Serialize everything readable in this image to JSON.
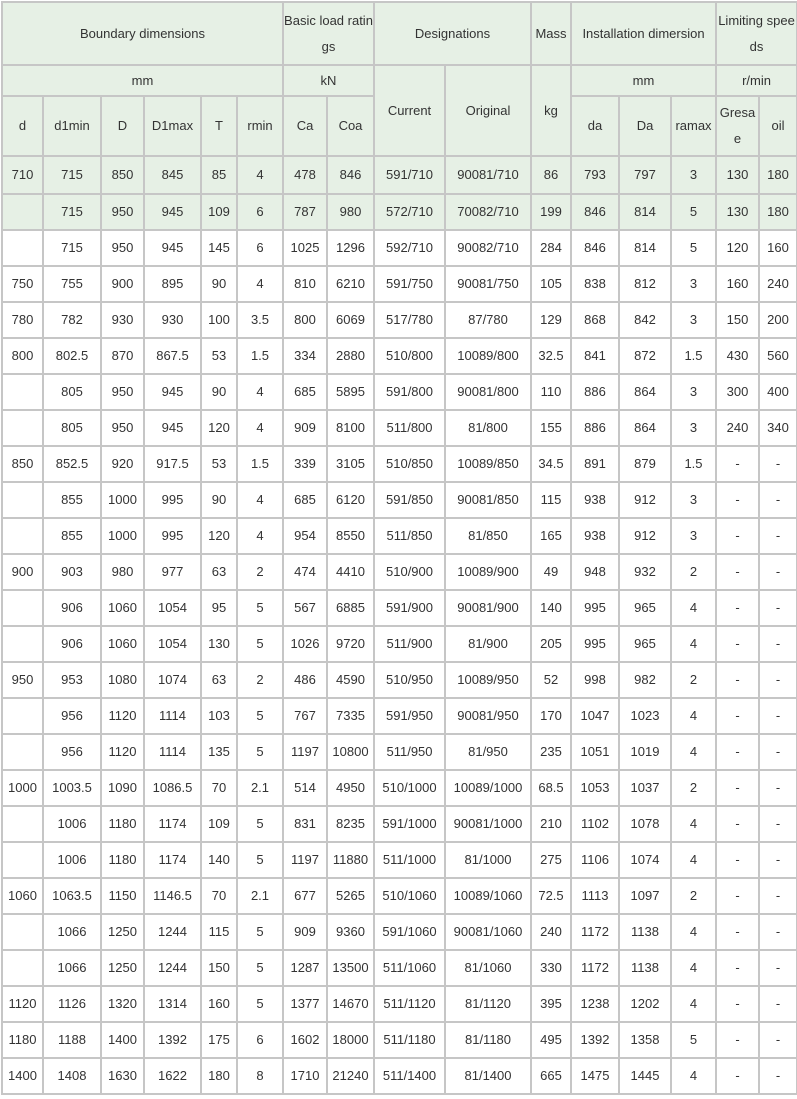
{
  "header": {
    "boundary": "Boundary dimensions",
    "load": "Basic load ratings",
    "designations": "Designations",
    "mass": "Mass",
    "installation": "Installation dimersion",
    "speeds": "Limiting speeds",
    "unit_mm": "mm",
    "unit_kn": "kN",
    "unit_kg": "kg",
    "unit_mm2": "mm",
    "unit_rpm": "r/min",
    "current": "Current",
    "original": "Original",
    "cols": [
      "d",
      "d1min",
      "D",
      "D1max",
      "T",
      "rmin",
      "Ca",
      "Coa"
    ],
    "cols2": [
      "da",
      "Da",
      "ramax",
      "Gresae",
      "oil"
    ]
  },
  "rows": [
    [
      "710",
      "715",
      "850",
      "845",
      "85",
      "4",
      "478",
      "846",
      "591/710",
      "90081/710",
      "86",
      "793",
      "797",
      "3",
      "130",
      "180"
    ],
    [
      "",
      "715",
      "950",
      "945",
      "109",
      "6",
      "787",
      "980",
      "572/710",
      "70082/710",
      "199",
      "846",
      "814",
      "5",
      "130",
      "180"
    ],
    [
      "",
      "715",
      "950",
      "945",
      "145",
      "6",
      "1025",
      "1296",
      "592/710",
      "90082/710",
      "284",
      "846",
      "814",
      "5",
      "120",
      "160"
    ],
    [
      "750",
      "755",
      "900",
      "895",
      "90",
      "4",
      "810",
      "6210",
      "591/750",
      "90081/750",
      "105",
      "838",
      "812",
      "3",
      "160",
      "240"
    ],
    [
      "780",
      "782",
      "930",
      "930",
      "100",
      "3.5",
      "800",
      "6069",
      "517/780",
      "87/780",
      "129",
      "868",
      "842",
      "3",
      "150",
      "200"
    ],
    [
      "800",
      "802.5",
      "870",
      "867.5",
      "53",
      "1.5",
      "334",
      "2880",
      "510/800",
      "10089/800",
      "32.5",
      "841",
      "872",
      "1.5",
      "430",
      "560"
    ],
    [
      "",
      "805",
      "950",
      "945",
      "90",
      "4",
      "685",
      "5895",
      "591/800",
      "90081/800",
      "110",
      "886",
      "864",
      "3",
      "300",
      "400"
    ],
    [
      "",
      "805",
      "950",
      "945",
      "120",
      "4",
      "909",
      "8100",
      "511/800",
      "81/800",
      "155",
      "886",
      "864",
      "3",
      "240",
      "340"
    ],
    [
      "850",
      "852.5",
      "920",
      "917.5",
      "53",
      "1.5",
      "339",
      "3105",
      "510/850",
      "10089/850",
      "34.5",
      "891",
      "879",
      "1.5",
      "-",
      "-"
    ],
    [
      "",
      "855",
      "1000",
      "995",
      "90",
      "4",
      "685",
      "6120",
      "591/850",
      "90081/850",
      "115",
      "938",
      "912",
      "3",
      "-",
      "-"
    ],
    [
      "",
      "855",
      "1000",
      "995",
      "120",
      "4",
      "954",
      "8550",
      "511/850",
      "81/850",
      "165",
      "938",
      "912",
      "3",
      "-",
      "-"
    ],
    [
      "900",
      "903",
      "980",
      "977",
      "63",
      "2",
      "474",
      "4410",
      "510/900",
      "10089/900",
      "49",
      "948",
      "932",
      "2",
      "-",
      "-"
    ],
    [
      "",
      "906",
      "1060",
      "1054",
      "95",
      "5",
      "567",
      "6885",
      "591/900",
      "90081/900",
      "140",
      "995",
      "965",
      "4",
      "-",
      "-"
    ],
    [
      "",
      "906",
      "1060",
      "1054",
      "130",
      "5",
      "1026",
      "9720",
      "511/900",
      "81/900",
      "205",
      "995",
      "965",
      "4",
      "-",
      "-"
    ],
    [
      "950",
      "953",
      "1080",
      "1074",
      "63",
      "2",
      "486",
      "4590",
      "510/950",
      "10089/950",
      "52",
      "998",
      "982",
      "2",
      "-",
      "-"
    ],
    [
      "",
      "956",
      "1120",
      "1114",
      "103",
      "5",
      "767",
      "7335",
      "591/950",
      "90081/950",
      "170",
      "1047",
      "1023",
      "4",
      "-",
      "-"
    ],
    [
      "",
      "956",
      "1120",
      "1114",
      "135",
      "5",
      "1197",
      "10800",
      "511/950",
      "81/950",
      "235",
      "1051",
      "1019",
      "4",
      "-",
      "-"
    ],
    [
      "1000",
      "1003.5",
      "1090",
      "1086.5",
      "70",
      "2.1",
      "514",
      "4950",
      "510/1000",
      "10089/1000",
      "68.5",
      "1053",
      "1037",
      "2",
      "-",
      "-"
    ],
    [
      "",
      "1006",
      "1180",
      "1174",
      "109",
      "5",
      "831",
      "8235",
      "591/1000",
      "90081/1000",
      "210",
      "1102",
      "1078",
      "4",
      "-",
      "-"
    ],
    [
      "",
      "1006",
      "1180",
      "1174",
      "140",
      "5",
      "1197",
      "11880",
      "511/1000",
      "81/1000",
      "275",
      "1106",
      "1074",
      "4",
      "-",
      "-"
    ],
    [
      "1060",
      "1063.5",
      "1150",
      "1146.5",
      "70",
      "2.1",
      "677",
      "5265",
      "510/1060",
      "10089/1060",
      "72.5",
      "1113",
      "1097",
      "2",
      "-",
      "-"
    ],
    [
      "",
      "1066",
      "1250",
      "1244",
      "115",
      "5",
      "909",
      "9360",
      "591/1060",
      "90081/1060",
      "240",
      "1172",
      "1138",
      "4",
      "-",
      "-"
    ],
    [
      "",
      "1066",
      "1250",
      "1244",
      "150",
      "5",
      "1287",
      "13500",
      "511/1060",
      "81/1060",
      "330",
      "1172",
      "1138",
      "4",
      "-",
      "-"
    ],
    [
      "1120",
      "1126",
      "1320",
      "1314",
      "160",
      "5",
      "1377",
      "14670",
      "511/1120",
      "81/1120",
      "395",
      "1238",
      "1202",
      "4",
      "-",
      "-"
    ],
    [
      "1180",
      "1188",
      "1400",
      "1392",
      "175",
      "6",
      "1602",
      "18000",
      "511/1180",
      "81/1180",
      "495",
      "1392",
      "1358",
      "5",
      "-",
      "-"
    ],
    [
      "1400",
      "1408",
      "1630",
      "1622",
      "180",
      "8",
      "1710",
      "21240",
      "511/1400",
      "81/1400",
      "665",
      "1475",
      "1445",
      "4",
      "-",
      "-"
    ]
  ],
  "colors": {
    "header_bg": "#e6f0e5",
    "border": "#c6c6c6",
    "text": "#333333"
  }
}
